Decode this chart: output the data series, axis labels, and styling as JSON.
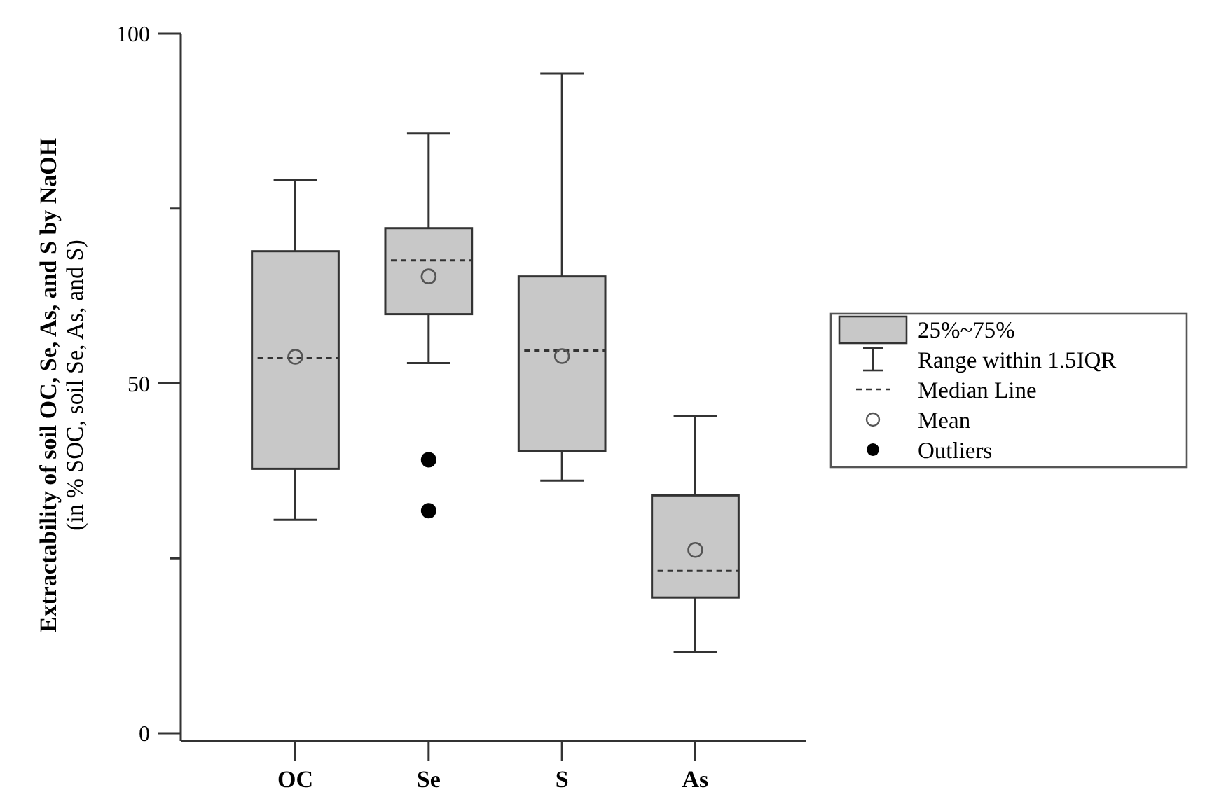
{
  "chart_data": {
    "type": "box",
    "ylabel": "Extractability of soil OC, Se, As, and S by NaOH\n(in % SOC, soil Se, As, and S)",
    "categories": [
      "OC",
      "Se",
      "S",
      "As"
    ],
    "series": [
      {
        "color": "#c8c8c8",
        "boxes": [
          {
            "low": 30.5,
            "q1": 37.8,
            "median": 53.6,
            "q3": 68.9,
            "high": 79.1,
            "mean": 53.8
          },
          {
            "low": 52.9,
            "q1": 59.9,
            "median": 67.6,
            "q3": 72.2,
            "high": 85.7,
            "mean": 65.3,
            "outliers": [
              39.1,
              31.8
            ]
          },
          {
            "low": 36.1,
            "q1": 40.3,
            "median": 54.7,
            "q3": 65.3,
            "high": 94.3,
            "mean": 53.9
          },
          {
            "low": 11.6,
            "q1": 19.4,
            "median": 23.2,
            "q3": 34.0,
            "high": 45.4,
            "mean": 26.2
          }
        ]
      }
    ],
    "ylim": [
      -0.5,
      100
    ],
    "yticks": [
      0,
      {
        "value": 25,
        "label": null
      },
      50,
      {
        "value": 75,
        "label": null
      },
      100
    ],
    "line_style": "dashed",
    "annotations": [
      "25%~75%",
      "Range within 1.5IQR",
      "Median Line",
      "Mean",
      "Outliers"
    ]
  }
}
